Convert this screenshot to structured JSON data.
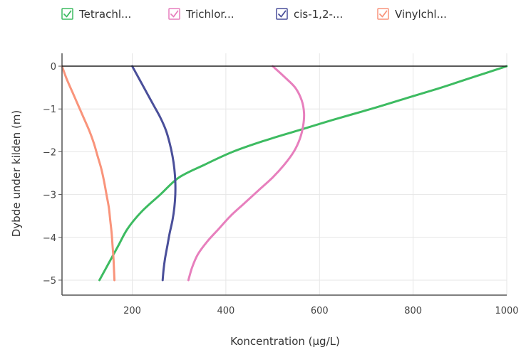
{
  "chart_data": {
    "type": "line",
    "xlabel": "Koncentration (µg/L)",
    "ylabel": "Dybde under kilden (m)",
    "xlim": [
      50,
      1000
    ],
    "ylim": [
      -5.35,
      0.3
    ],
    "x_ticks": [
      "200",
      "400",
      "600",
      "800",
      "1000"
    ],
    "y_ticks": [
      "0",
      "−1",
      "−2",
      "−3",
      "−4",
      "−5"
    ],
    "grid": true,
    "legend_position": "top",
    "series": [
      {
        "name": "Tetrachl...",
        "color": "#3dbb61",
        "points": [
          [
            1000,
            0
          ],
          [
            930,
            -0.25
          ],
          [
            860,
            -0.5
          ],
          [
            785,
            -0.75
          ],
          [
            710,
            -1.0
          ],
          [
            630,
            -1.25
          ],
          [
            555,
            -1.5
          ],
          [
            480,
            -1.75
          ],
          [
            415,
            -2.0
          ],
          [
            355,
            -2.3
          ],
          [
            300,
            -2.6
          ],
          [
            260,
            -3.0
          ],
          [
            220,
            -3.4
          ],
          [
            190,
            -3.8
          ],
          [
            170,
            -4.2
          ],
          [
            150,
            -4.6
          ],
          [
            130,
            -5.0
          ]
        ]
      },
      {
        "name": "Trichlor...",
        "color": "#e77fbd",
        "points": [
          [
            500,
            0
          ],
          [
            525,
            -0.25
          ],
          [
            548,
            -0.5
          ],
          [
            562,
            -0.8
          ],
          [
            567,
            -1.1
          ],
          [
            565,
            -1.4
          ],
          [
            558,
            -1.7
          ],
          [
            545,
            -2.0
          ],
          [
            525,
            -2.3
          ],
          [
            500,
            -2.6
          ],
          [
            470,
            -2.9
          ],
          [
            440,
            -3.2
          ],
          [
            410,
            -3.5
          ],
          [
            385,
            -3.8
          ],
          [
            360,
            -4.1
          ],
          [
            340,
            -4.4
          ],
          [
            328,
            -4.7
          ],
          [
            320,
            -5.0
          ]
        ]
      },
      {
        "name": "cis-1,2-...",
        "color": "#4a4f9a",
        "points": [
          [
            200,
            0
          ],
          [
            215,
            -0.3
          ],
          [
            230,
            -0.6
          ],
          [
            245,
            -0.9
          ],
          [
            260,
            -1.2
          ],
          [
            272,
            -1.5
          ],
          [
            280,
            -1.8
          ],
          [
            286,
            -2.1
          ],
          [
            290,
            -2.4
          ],
          [
            292,
            -2.7
          ],
          [
            292,
            -3.0
          ],
          [
            290,
            -3.3
          ],
          [
            286,
            -3.6
          ],
          [
            280,
            -3.9
          ],
          [
            275,
            -4.2
          ],
          [
            270,
            -4.5
          ],
          [
            267,
            -4.75
          ],
          [
            265,
            -5.0
          ]
        ]
      },
      {
        "name": "Vinylchl...",
        "color": "#f9947b",
        "points": [
          [
            50,
            0
          ],
          [
            60,
            -0.3
          ],
          [
            72,
            -0.6
          ],
          [
            84,
            -0.9
          ],
          [
            96,
            -1.2
          ],
          [
            108,
            -1.5
          ],
          [
            118,
            -1.8
          ],
          [
            126,
            -2.1
          ],
          [
            134,
            -2.4
          ],
          [
            140,
            -2.7
          ],
          [
            145,
            -3.0
          ],
          [
            150,
            -3.3
          ],
          [
            153,
            -3.6
          ],
          [
            156,
            -3.9
          ],
          [
            158,
            -4.2
          ],
          [
            160,
            -4.5
          ],
          [
            161,
            -4.75
          ],
          [
            162,
            -5.0
          ]
        ]
      }
    ]
  }
}
